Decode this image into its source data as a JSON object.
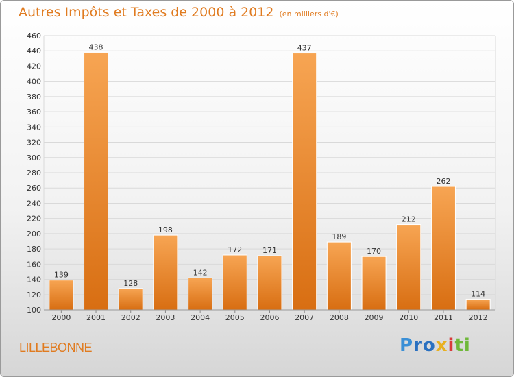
{
  "header": {
    "title": "Autres Impôts et Taxes de 2000 à 2012",
    "unit": "(en milliers d'€)"
  },
  "footer": {
    "city": "LILLEBONNE",
    "logo": "Proxiti"
  },
  "colors": {
    "bar_light": "#f7a553",
    "bar_dark": "#d86e12",
    "title": "#e07b20",
    "grid": "#d9d9d9"
  },
  "chart_data": {
    "type": "bar",
    "title": "Autres Impôts et Taxes de 2000 à 2012",
    "xlabel": "",
    "ylabel": "",
    "categories": [
      "2000",
      "2001",
      "2002",
      "2003",
      "2004",
      "2005",
      "2006",
      "2007",
      "2008",
      "2009",
      "2010",
      "2011",
      "2012"
    ],
    "values": [
      139,
      438,
      128,
      198,
      142,
      172,
      171,
      437,
      189,
      170,
      212,
      262,
      114
    ],
    "ylim": [
      100,
      460
    ],
    "ytick_step": 20,
    "grid": true,
    "legend": "none"
  }
}
